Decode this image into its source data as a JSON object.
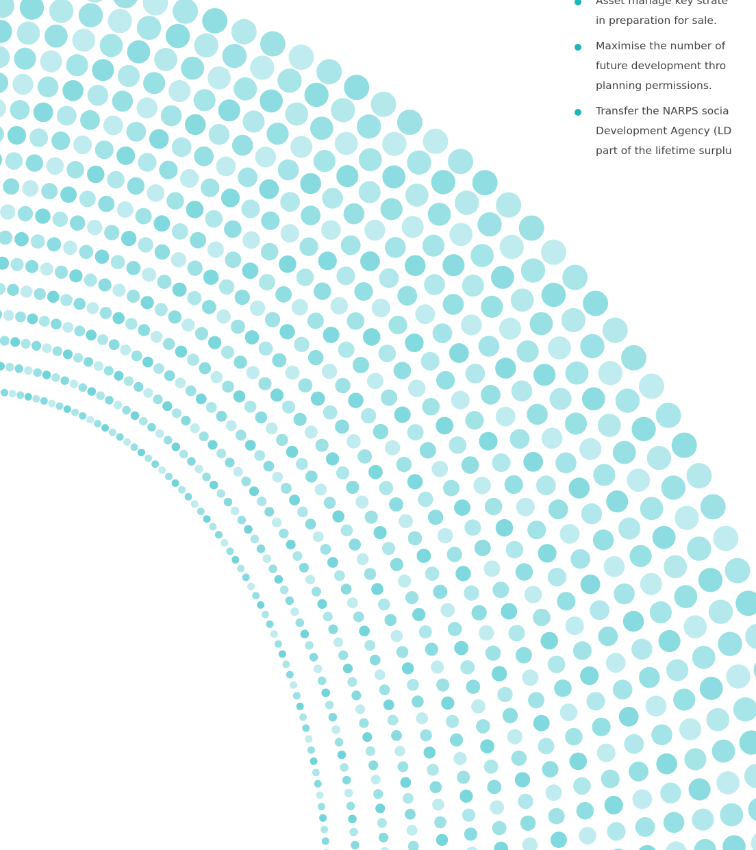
{
  "bullets": [
    {
      "lines": [
        "Asset manage key strate",
        "in preparation for sale."
      ]
    },
    {
      "lines": [
        "Maximise the number of",
        "future development thro",
        "planning permissions."
      ]
    },
    {
      "lines": [
        "Transfer the NARPS socia",
        "Development Agency (LD",
        "part of the lifetime surplu"
      ]
    }
  ]
}
